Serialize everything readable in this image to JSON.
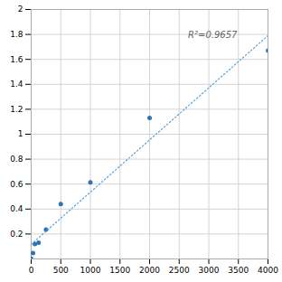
{
  "chart_data": {
    "type": "scatter",
    "series": [
      {
        "type": "scatter",
        "color": "#2E74B5",
        "marker": "circle",
        "x": [
          0,
          31.25,
          62.5,
          125,
          250,
          500,
          1000,
          2000,
          4000
        ],
        "values": [
          0.002,
          0.047,
          0.12,
          0.13,
          0.235,
          0.44,
          0.615,
          1.13,
          1.67
        ]
      },
      {
        "type": "line",
        "color": "#5BA3D9",
        "line_style": "dotted",
        "x": [
          0,
          4000
        ],
        "values": [
          0.11726,
          1.79064
        ]
      }
    ],
    "annotations": [
      {
        "text": "R²=0.9657",
        "x": 2650,
        "y": 1.82
      }
    ],
    "xlim": [
      0,
      4000
    ],
    "ylim": [
      0,
      2
    ],
    "xticks": [
      0,
      500,
      1000,
      1500,
      2000,
      2500,
      3000,
      3500,
      4000
    ],
    "yticks": [
      0.2,
      0.4,
      0.6,
      0.8,
      1,
      1.2,
      1.4,
      1.6,
      1.8,
      2
    ],
    "grid": true
  }
}
